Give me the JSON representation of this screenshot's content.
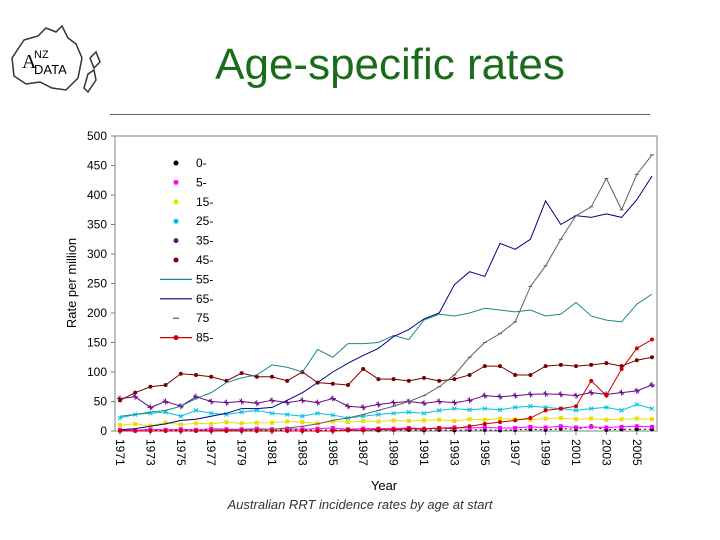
{
  "header": {
    "title": "Age-specific rates",
    "logo_text_a": "A",
    "logo_text_nz": "NZ",
    "logo_text_data": "DATA"
  },
  "caption": "Australian RRT incidence rates by age at start",
  "colors": {
    "title": "#1a6b1a",
    "series": [
      "#000000",
      "#ff00ff",
      "#e8e000",
      "#00c0e0",
      "#6a0a8a",
      "#7a0000",
      "#1a8a8a",
      "#000080",
      "#606060",
      "#cc0000"
    ]
  },
  "chart_data": {
    "type": "line",
    "xlabel": "Year",
    "ylabel": "Rate per million",
    "ylim": [
      0,
      500
    ],
    "yticks": [
      0,
      50,
      100,
      150,
      200,
      250,
      300,
      350,
      400,
      450,
      500
    ],
    "xtick_labels": [
      "1971",
      "1973",
      "1975",
      "1977",
      "1979",
      "1981",
      "1983",
      "1985",
      "1987",
      "1989",
      "1991",
      "1993",
      "1995",
      "1997",
      "1999",
      "2001",
      "2003",
      "2005"
    ],
    "x": [
      1971,
      1972,
      1973,
      1974,
      1975,
      1976,
      1977,
      1978,
      1979,
      1980,
      1981,
      1982,
      1983,
      1984,
      1985,
      1986,
      1987,
      1988,
      1989,
      1990,
      1991,
      1992,
      1993,
      1994,
      1995,
      1996,
      1997,
      1998,
      1999,
      2000,
      2001,
      2002,
      2003,
      2004,
      2005,
      2006
    ],
    "legend_position": "top-left",
    "grid": false,
    "series": [
      {
        "name": "0-",
        "values": [
          1,
          1,
          2,
          1,
          2,
          1,
          2,
          1,
          2,
          1,
          1,
          2,
          2,
          1,
          2,
          1,
          2,
          1,
          2,
          2,
          1,
          2,
          1,
          2,
          2,
          1,
          2,
          3,
          2,
          4,
          3,
          8,
          2,
          3,
          3,
          3
        ]
      },
      {
        "name": "5-",
        "values": [
          2,
          1,
          3,
          2,
          3,
          2,
          4,
          3,
          3,
          4,
          3,
          4,
          3,
          4,
          5,
          3,
          4,
          4,
          4,
          5,
          4,
          5,
          6,
          5,
          6,
          5,
          5,
          7,
          6,
          8,
          6,
          7,
          6,
          7,
          8,
          7
        ]
      },
      {
        "name": "15-",
        "values": [
          10,
          12,
          9,
          14,
          11,
          13,
          12,
          15,
          13,
          14,
          14,
          16,
          15,
          13,
          16,
          15,
          17,
          16,
          18,
          17,
          18,
          19,
          17,
          20,
          19,
          21,
          20,
          19,
          21,
          22,
          20,
          21,
          19,
          20,
          21,
          20
        ]
      },
      {
        "name": "25-",
        "values": [
          22,
          28,
          30,
          32,
          25,
          35,
          30,
          28,
          32,
          35,
          30,
          28,
          25,
          30,
          27,
          22,
          25,
          28,
          30,
          32,
          30,
          35,
          38,
          36,
          38,
          36,
          40,
          42,
          40,
          38,
          35,
          38,
          40,
          35,
          45,
          38
        ]
      },
      {
        "name": "35-",
        "values": [
          55,
          58,
          40,
          50,
          42,
          58,
          50,
          48,
          50,
          47,
          52,
          48,
          52,
          48,
          55,
          42,
          40,
          45,
          48,
          50,
          47,
          50,
          48,
          52,
          60,
          58,
          60,
          62,
          63,
          62,
          60,
          65,
          62,
          65,
          68,
          78
        ]
      },
      {
        "name": "45-",
        "values": [
          52,
          65,
          75,
          78,
          97,
          95,
          92,
          85,
          98,
          92,
          92,
          85,
          100,
          82,
          80,
          78,
          105,
          88,
          88,
          85,
          90,
          85,
          88,
          95,
          110,
          110,
          95,
          95,
          110,
          112,
          110,
          112,
          115,
          110,
          120,
          125
        ]
      },
      {
        "name": "55-",
        "values": [
          25,
          28,
          32,
          35,
          42,
          55,
          65,
          82,
          90,
          95,
          112,
          108,
          100,
          138,
          125,
          148,
          148,
          150,
          162,
          155,
          188,
          198,
          195,
          200,
          208,
          205,
          202,
          205,
          195,
          198,
          218,
          195,
          188,
          185,
          215,
          232
        ]
      },
      {
        "name": "65-",
        "values": [
          2,
          4,
          8,
          12,
          18,
          20,
          25,
          30,
          38,
          38,
          40,
          52,
          65,
          82,
          100,
          115,
          128,
          140,
          160,
          172,
          190,
          200,
          248,
          270,
          262,
          318,
          308,
          325,
          390,
          350,
          365,
          362,
          368,
          362,
          392,
          432
        ]
      },
      {
        "name": "75",
        "values": [
          0,
          0,
          0,
          0,
          0,
          0,
          1,
          2,
          2,
          3,
          3,
          5,
          8,
          12,
          18,
          22,
          28,
          35,
          42,
          50,
          60,
          75,
          95,
          125,
          150,
          165,
          185,
          245,
          280,
          325,
          365,
          380,
          428,
          375,
          435,
          468
        ]
      },
      {
        "name": "85-",
        "values": [
          0,
          0,
          0,
          0,
          0,
          0,
          0,
          0,
          0,
          0,
          0,
          0,
          0,
          0,
          0,
          2,
          1,
          3,
          2,
          4,
          3,
          5,
          4,
          8,
          12,
          15,
          18,
          22,
          35,
          38,
          42,
          85,
          60,
          105,
          140,
          155
        ]
      }
    ]
  }
}
